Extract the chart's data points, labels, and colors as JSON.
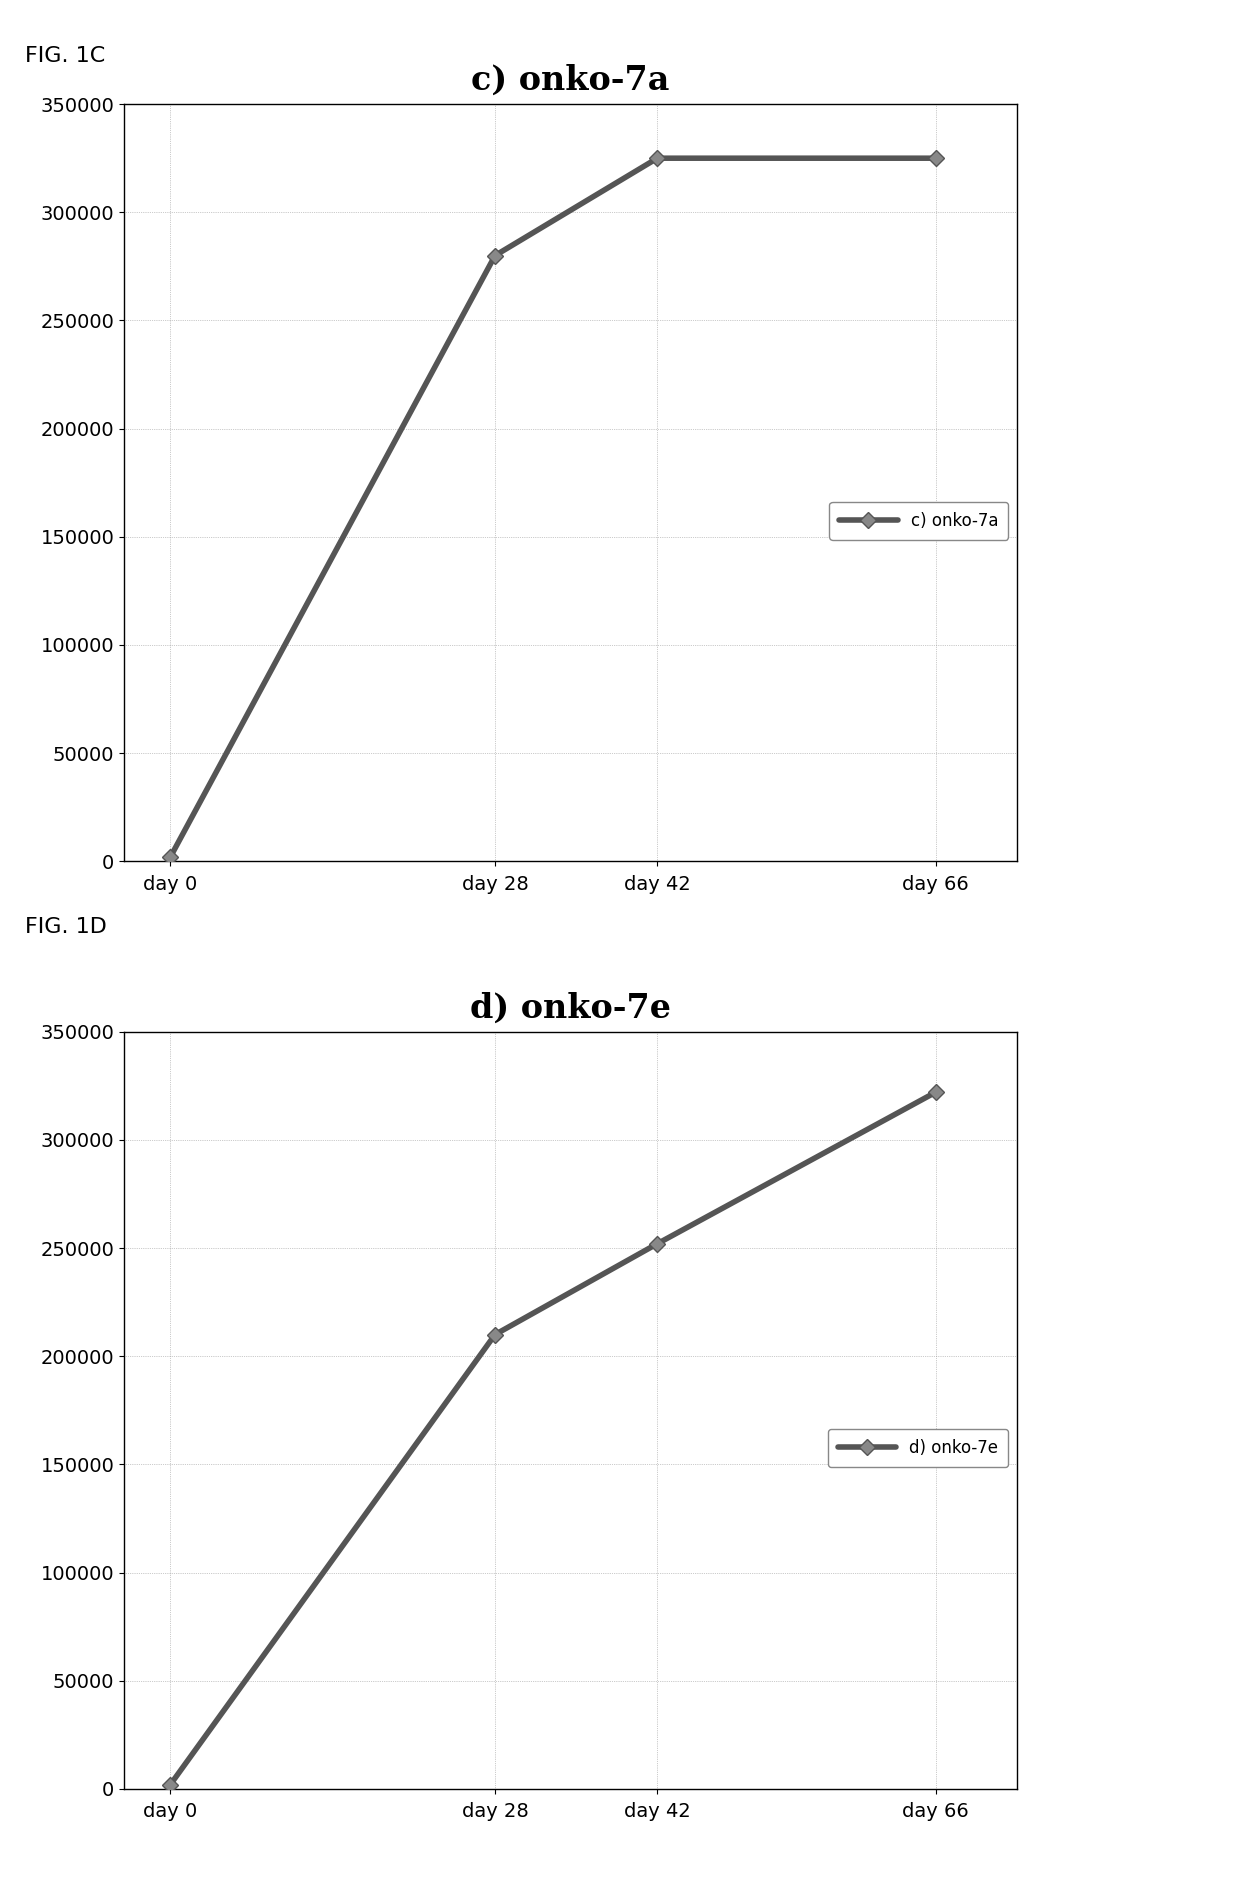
{
  "chart_c": {
    "title": "c) onko-7a",
    "fig_label": "FIG. 1C",
    "legend_label": "c) onko-7a",
    "x_labels": [
      "day 0",
      "day 28",
      "day 42",
      "day 66"
    ],
    "x_values": [
      0,
      28,
      42,
      66
    ],
    "y_values": [
      2000,
      280000,
      325000,
      325000
    ],
    "ylim": [
      0,
      350000
    ],
    "yticks": [
      0,
      50000,
      100000,
      150000,
      200000,
      250000,
      300000,
      350000
    ]
  },
  "chart_d": {
    "title": "d) onko-7e",
    "fig_label": "FIG. 1D",
    "legend_label": "d) onko-7e",
    "x_labels": [
      "day 0",
      "day 28",
      "day 42",
      "day 66"
    ],
    "x_values": [
      0,
      28,
      42,
      66
    ],
    "y_values": [
      2000,
      210000,
      252000,
      322000
    ],
    "ylim": [
      0,
      350000
    ],
    "yticks": [
      0,
      50000,
      100000,
      150000,
      200000,
      250000,
      300000,
      350000
    ]
  },
  "background_color": "#ffffff",
  "line_color": "#555555",
  "line_width": 4.0,
  "marker": "D",
  "marker_size": 8,
  "title_fontsize": 24,
  "tick_fontsize": 14,
  "legend_fontsize": 12,
  "fig_label_fontsize": 16,
  "grid_color": "#999999",
  "grid_linestyle": ":",
  "grid_linewidth": 0.5,
  "xlim": [
    -4,
    73
  ]
}
